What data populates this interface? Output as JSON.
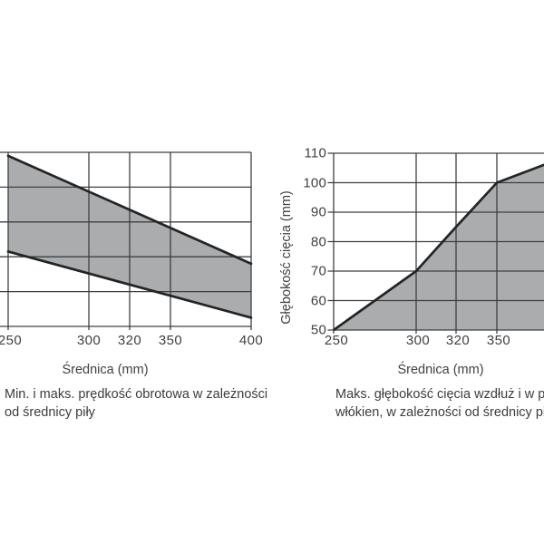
{
  "page": {
    "background_color": "#ffffff",
    "description_note": "scanned manual page fragment with two charts; left chart y-axis cropped by left image edge, right chart clipped by right image edge"
  },
  "colors": {
    "fill_gray": "#AAACAE",
    "grid_line": "#3d4042",
    "curve_line": "#222426",
    "text": "#3e4043"
  },
  "chart_data": [
    {
      "type": "area",
      "subtype": "min-max band (area filled between two straight lines)",
      "title": "",
      "xlabel": "Średnica (mm)",
      "x_ticks": [
        250,
        300,
        320,
        350,
        400
      ],
      "x_tick_labels": [
        "250",
        "300",
        "320",
        "350",
        "400"
      ],
      "xlim": [
        250,
        400
      ],
      "y_axis_note": "y-axis tick labels cropped outside the left edge of the image; 6 horizontal gridlines visible",
      "grid": true,
      "series": [
        {
          "name": "maks. prędkość obrotowa (górna linia)",
          "x": [
            250,
            400
          ],
          "y_frac_of_plot_height": [
            0.98,
            0.36
          ]
        },
        {
          "name": "min. prędkość obrotowa (dolna linia)",
          "x": [
            250,
            400
          ],
          "y_frac_of_plot_height": [
            0.43,
            0.05
          ]
        }
      ],
      "fill_between": true,
      "fill_between_color": "#AAACAE",
      "caption": [
        "Min. i maks. prędkość obrotowa w zależności",
        "od średnicy piły"
      ]
    },
    {
      "type": "area",
      "title": "",
      "xlabel": "Średnica (mm)",
      "ylabel": "Głębokość cięcia (mm)",
      "x_ticks": [
        250,
        300,
        320,
        350
      ],
      "x_tick_labels": [
        "250",
        "300",
        "320",
        "350"
      ],
      "y_ticks": [
        50,
        60,
        70,
        80,
        90,
        100,
        110
      ],
      "y_tick_labels_top_to_bottom": [
        "110",
        "100",
        "90",
        "80",
        "70",
        "60",
        "50"
      ],
      "ylim": [
        50,
        110
      ],
      "grid": true,
      "points": [
        [
          250,
          50
        ],
        [
          300,
          70
        ],
        [
          320,
          85
        ],
        [
          350,
          100
        ]
      ],
      "clip_edge_point": [
        378,
        106
      ],
      "clipped_at_right_image_edge": true,
      "fill_color": "#AAACAE",
      "caption": [
        "Maks. głębokość cięcia wzdłuż i w poprzek",
        "włókien, w zależności od średnicy piły."
      ]
    }
  ]
}
